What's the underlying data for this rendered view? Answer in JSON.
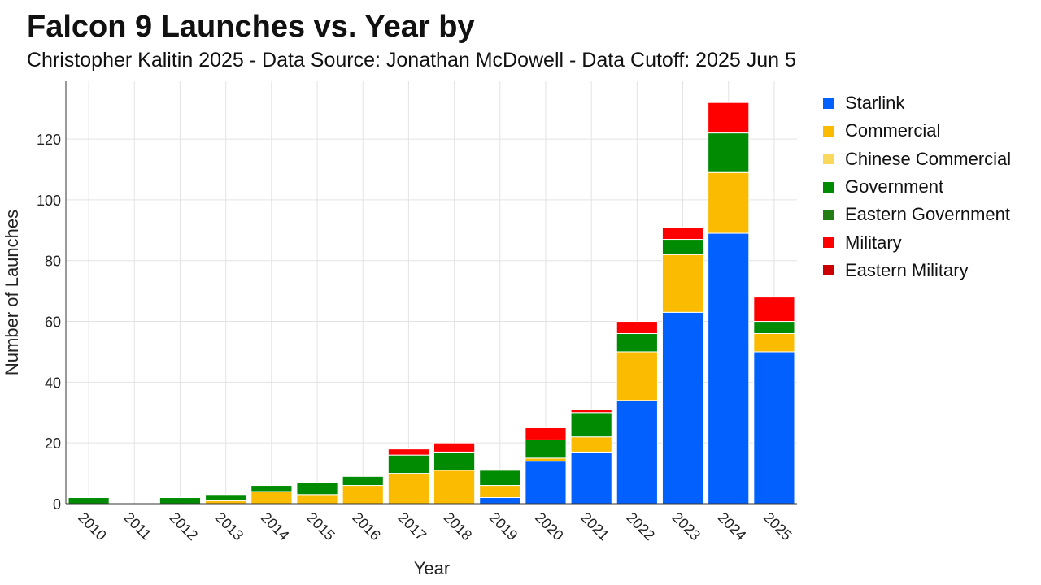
{
  "title": "Falcon 9 Launches vs. Year by",
  "subtitle": "Christopher Kalitin 2025 - Data Source: Jonathan McDowell - Data Cutoff: 2025 Jun 5",
  "chart_data": {
    "type": "bar",
    "stacked": true,
    "xlabel": "Year",
    "ylabel": "Number of Launches",
    "ylim": [
      0,
      139
    ],
    "yticks": [
      0,
      20,
      40,
      60,
      80,
      100,
      120
    ],
    "grid": true,
    "legend_position": "right",
    "categories": [
      "2010",
      "2011",
      "2012",
      "2013",
      "2014",
      "2015",
      "2016",
      "2017",
      "2018",
      "2019",
      "2020",
      "2021",
      "2022",
      "2023",
      "2024",
      "2025"
    ],
    "series": [
      {
        "name": "Starlink",
        "color": "#0160fe",
        "values": [
          0,
          0,
          0,
          0,
          0,
          0,
          0,
          0,
          0,
          2,
          14,
          17,
          34,
          63,
          89,
          50
        ]
      },
      {
        "name": "Commercial",
        "color": "#fabb00",
        "values": [
          0,
          0,
          0,
          1,
          4,
          3,
          6,
          10,
          11,
          4,
          1,
          5,
          16,
          19,
          20,
          6
        ]
      },
      {
        "name": "Chinese Commercial",
        "color": "#fad85c",
        "values": [
          0,
          0,
          0,
          0,
          0,
          0,
          0,
          0,
          0,
          0,
          0,
          0,
          0,
          0,
          0,
          0
        ]
      },
      {
        "name": "Government",
        "color": "#008b02",
        "values": [
          2,
          0,
          2,
          2,
          2,
          4,
          3,
          6,
          6,
          5,
          6,
          8,
          6,
          5,
          13,
          4
        ]
      },
      {
        "name": "Eastern Government",
        "color": "#247c14",
        "values": [
          0,
          0,
          0,
          0,
          0,
          0,
          0,
          0,
          0,
          0,
          0,
          0,
          0,
          0,
          0,
          0
        ]
      },
      {
        "name": "Military",
        "color": "#ff0000",
        "values": [
          0,
          0,
          0,
          0,
          0,
          0,
          0,
          2,
          3,
          0,
          4,
          1,
          4,
          4,
          10,
          8
        ]
      },
      {
        "name": "Eastern Military",
        "color": "#cc0000",
        "values": [
          0,
          0,
          0,
          0,
          0,
          0,
          0,
          0,
          0,
          0,
          0,
          0,
          0,
          0,
          0,
          0
        ]
      }
    ]
  }
}
